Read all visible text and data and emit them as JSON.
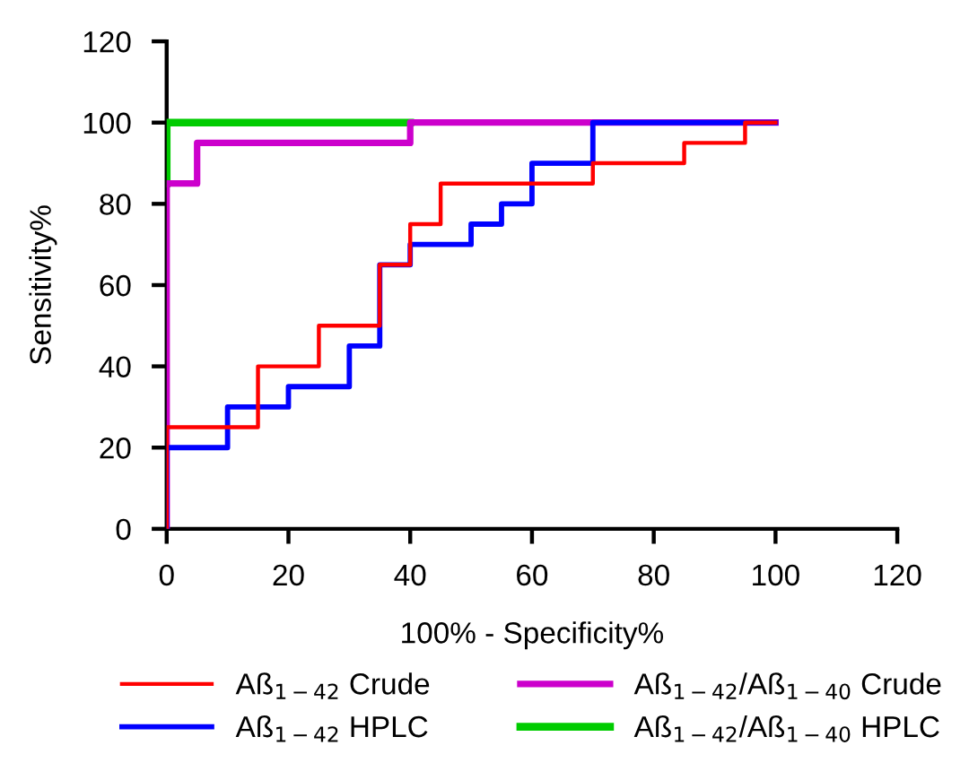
{
  "chart_data": {
    "type": "step",
    "xlabel": "100% - Specificity%",
    "ylabel": "Sensitivity%",
    "xlim": [
      0,
      120
    ],
    "xticks": [
      0,
      20,
      40,
      60,
      80,
      100,
      120
    ],
    "ylim": [
      0,
      120
    ],
    "yticks": [
      0,
      20,
      40,
      60,
      80,
      100,
      120
    ],
    "grid": false,
    "legend": "bottom",
    "marker": "none",
    "line_style": "solid",
    "series": [
      {
        "name": "Aß$_{1−42}$ Crude",
        "color": "#ff0000",
        "x": [
          0,
          0,
          15,
          25,
          35,
          40,
          45,
          70,
          85,
          95,
          100
        ],
        "values": [
          0,
          25,
          40,
          50,
          65,
          75,
          85,
          90,
          95,
          100,
          100
        ]
      },
      {
        "name": "Aß$_{1−42}$ HPLC",
        "color": "#0000ff",
        "x": [
          0,
          0,
          10,
          20,
          30,
          35,
          40,
          50,
          55,
          60,
          70,
          100
        ],
        "values": [
          0,
          20,
          30,
          35,
          45,
          65,
          70,
          75,
          80,
          90,
          100,
          100
        ]
      },
      {
        "name": "Aß$_{1−42}$/Aß$_{1−40}$ Crude",
        "color": "#cc00cc",
        "x": [
          0,
          0,
          5,
          40,
          100
        ],
        "values": [
          0,
          85,
          95,
          100,
          100
        ]
      },
      {
        "name": "Aß$_{1−42}$/Aß$_{1−40}$ HPLC",
        "color": "#00cc00",
        "x": [
          0,
          0,
          40
        ],
        "values": [
          85,
          100,
          100
        ]
      }
    ]
  }
}
